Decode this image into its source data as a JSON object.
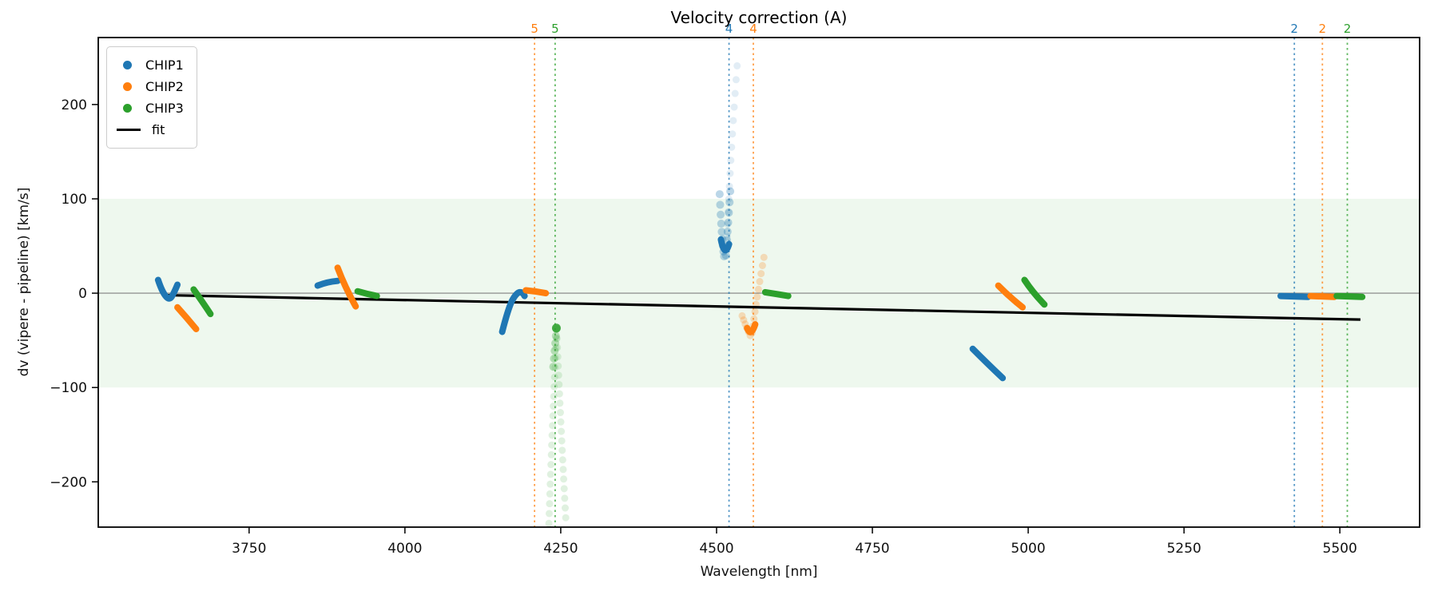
{
  "chart_data": {
    "type": "scatter",
    "title": "Velocity correction (A)",
    "xlabel": "Wavelength [nm]",
    "ylabel": "dv (vipere - pipeline) [km/s]",
    "xlim": [
      3508,
      5628
    ],
    "ylim": [
      -248,
      271
    ],
    "xticks": [
      3750,
      4000,
      4250,
      4500,
      4750,
      5000,
      5250,
      5500
    ],
    "yticks": [
      -200,
      -100,
      0,
      100,
      200
    ],
    "grid": "off",
    "legend_position": "upper left",
    "band": {
      "ymin": -100,
      "ymax": 100,
      "color": "#2ca02c",
      "alpha": 0.08
    },
    "zero_line": {
      "y": 0,
      "color": "#808080"
    },
    "fit_line": {
      "x": [
        3610,
        5533
      ],
      "y": [
        -2,
        -28
      ],
      "color": "#000000",
      "width": 3.2
    },
    "legend": [
      {
        "label": "CHIP1",
        "color": "#1f77b4",
        "marker": "dot"
      },
      {
        "label": "CHIP2",
        "color": "#ff7f0e",
        "marker": "dot"
      },
      {
        "label": "CHIP3",
        "color": "#2ca02c",
        "marker": "dot"
      },
      {
        "label": "fit",
        "color": "#000000",
        "marker": "line"
      }
    ],
    "vlines": [
      {
        "x": 4208,
        "label": "5",
        "color": "#ff7f0e"
      },
      {
        "x": 4241,
        "label": "5",
        "color": "#2ca02c"
      },
      {
        "x": 4520,
        "label": "4",
        "color": "#1f77b4"
      },
      {
        "x": 4559,
        "label": "4",
        "color": "#ff7f0e"
      },
      {
        "x": 5427,
        "label": "2",
        "color": "#1f77b4"
      },
      {
        "x": 5472,
        "label": "2",
        "color": "#ff7f0e"
      },
      {
        "x": 5512,
        "label": "2",
        "color": "#2ca02c"
      }
    ],
    "series": [
      {
        "name": "CHIP1",
        "color": "#1f77b4",
        "arcs": [
          [
            [
              3604,
              14
            ],
            [
              3610,
              2
            ],
            [
              3622,
              -8
            ],
            [
              3630,
              1
            ],
            [
              3635,
              9
            ]
          ],
          [
            [
              3860,
              8
            ],
            [
              3875,
              12
            ],
            [
              3892,
              13
            ]
          ],
          [
            [
              4156,
              -41
            ],
            [
              4167,
              -13
            ],
            [
              4180,
              1
            ],
            [
              4189,
              1
            ],
            [
              4192,
              -3
            ]
          ],
          [
            [
              4507,
              57
            ],
            [
              4513,
              37
            ],
            [
              4520,
              52
            ]
          ],
          [
            [
              4911,
              -59
            ],
            [
              4932,
              -73
            ],
            [
              4959,
              -90
            ]
          ],
          [
            [
              5405,
              -3
            ],
            [
              5449,
              -4
            ]
          ]
        ]
      },
      {
        "name": "CHIP2",
        "color": "#ff7f0e",
        "arcs": [
          [
            [
              3635,
              -15
            ],
            [
              3650,
              -26
            ],
            [
              3665,
              -38
            ]
          ],
          [
            [
              3892,
              27
            ],
            [
              3904,
              6
            ],
            [
              3921,
              -14
            ]
          ],
          [
            [
              4194,
              3
            ],
            [
              4210,
              2
            ],
            [
              4226,
              0
            ]
          ],
          [
            [
              4549,
              -37
            ],
            [
              4555,
              -47
            ],
            [
              4562,
              -33
            ]
          ],
          [
            [
              4952,
              8
            ],
            [
              4970,
              -4
            ],
            [
              4991,
              -15
            ]
          ],
          [
            [
              5453,
              -3
            ],
            [
              5491,
              -4
            ]
          ]
        ]
      },
      {
        "name": "CHIP3",
        "color": "#2ca02c",
        "arcs": [
          [
            [
              3661,
              4
            ],
            [
              3674,
              -8
            ],
            [
              3688,
              -22
            ]
          ],
          [
            [
              3924,
              2
            ],
            [
              3940,
              -1
            ],
            [
              3955,
              -3
            ]
          ],
          [
            [
              4578,
              1
            ],
            [
              4598,
              -1
            ],
            [
              4615,
              -3
            ]
          ],
          [
            [
              4994,
              14
            ],
            [
              5007,
              1
            ],
            [
              5026,
              -12
            ]
          ],
          [
            [
              5495,
              -3
            ],
            [
              5536,
              -4
            ]
          ]
        ]
      }
    ],
    "faint_arcs": [
      {
        "color": "#2ca02c",
        "alpha": 0.15,
        "r": 4.5,
        "n": 20,
        "p": [
          [
            4243,
            -48
          ],
          [
            4236,
            -145
          ],
          [
            4231,
            -244
          ]
        ]
      },
      {
        "color": "#2ca02c",
        "alpha": 0.15,
        "r": 4.5,
        "n": 20,
        "p": [
          [
            4244,
            -48
          ],
          [
            4250,
            -140
          ],
          [
            4258,
            -238
          ]
        ]
      },
      {
        "color": "#2ca02c",
        "alpha": 0.3,
        "r": 5.0,
        "n": 6,
        "p": [
          [
            4243,
            -38
          ],
          [
            4241,
            -56
          ],
          [
            4238,
            -78
          ]
        ]
      },
      {
        "color": "#2ca02c",
        "alpha": 0.85,
        "r": 5.5,
        "n": 1,
        "p": [
          [
            4243,
            -37
          ],
          [
            4243,
            -37
          ],
          [
            4243,
            -37
          ]
        ]
      },
      {
        "color": "#1f77b4",
        "alpha": 0.13,
        "r": 4.5,
        "n": 14,
        "p": [
          [
            4517,
            60
          ],
          [
            4522,
            145
          ],
          [
            4533,
            241
          ]
        ]
      },
      {
        "color": "#1f77b4",
        "alpha": 0.3,
        "r": 5.0,
        "n": 9,
        "p": [
          [
            4505,
            105
          ],
          [
            4508,
            58
          ],
          [
            4512,
            39
          ]
        ]
      },
      {
        "color": "#1f77b4",
        "alpha": 0.3,
        "r": 5.0,
        "n": 8,
        "p": [
          [
            4515,
            40
          ],
          [
            4518,
            66
          ],
          [
            4522,
            108
          ]
        ]
      },
      {
        "color": "#ff7f0e",
        "alpha": 0.25,
        "r": 4.5,
        "n": 11,
        "p": [
          [
            4557,
            -42
          ],
          [
            4564,
            -6
          ],
          [
            4576,
            38
          ]
        ]
      },
      {
        "color": "#ff7f0e",
        "alpha": 0.25,
        "r": 4.5,
        "n": 6,
        "p": [
          [
            4554,
            -45
          ],
          [
            4547,
            -35
          ],
          [
            4541,
            -24
          ]
        ]
      }
    ]
  }
}
